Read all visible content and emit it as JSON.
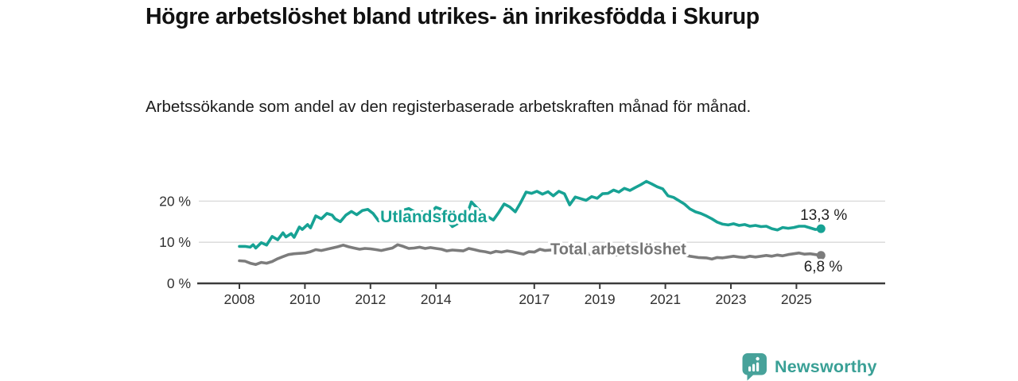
{
  "footer": {
    "brand": "Newsworthy"
  },
  "colors": {
    "accent_teal": "#17a294",
    "line_gray": "#7c7c7c",
    "label_gray": "#757575",
    "axis": "#3b3b3b",
    "gridline": "#d8d8d8",
    "logo_teal": "#47a29a"
  },
  "chart_data": {
    "type": "line",
    "title": "Högre arbetslöshet bland utrikes- än inrikesfödda i Skurup",
    "subtitle": "Arbetssökande som andel av den registerbaserade arbetskraften månad för månad.",
    "xlabel": "",
    "ylabel": "",
    "grid": true,
    "legend": "inline-labels",
    "xlim": [
      2006.8,
      2027.7
    ],
    "ylim": [
      0,
      26
    ],
    "y_unit": "%",
    "x_ticks": [
      {
        "year": 2008,
        "label": "2008"
      },
      {
        "year": 2010,
        "label": "2010"
      },
      {
        "year": 2012,
        "label": "2012"
      },
      {
        "year": 2014,
        "label": "2014"
      },
      {
        "year": 2017,
        "label": "2017"
      },
      {
        "year": 2019,
        "label": "2019"
      },
      {
        "year": 2021,
        "label": "2021"
      },
      {
        "year": 2023,
        "label": "2023"
      },
      {
        "year": 2025,
        "label": "2025"
      }
    ],
    "y_ticks": [
      {
        "value": 0,
        "label": "0 %"
      },
      {
        "value": 10,
        "label": "10 %"
      },
      {
        "value": 20,
        "label": "20 %"
      }
    ],
    "series": [
      {
        "name": "Utlandsfödda",
        "color": "#17a294",
        "label_color": "#17a294",
        "inline_label": {
          "text": "Utlandsfödda",
          "year": 2012.3,
          "pct": 14.9,
          "font_size": 21
        },
        "end_label": {
          "text": "13,3 %",
          "dx": 33,
          "dy": -11
        },
        "end_value": 13.3,
        "points": [
          [
            2008.0,
            9.0
          ],
          [
            2008.17,
            9.0
          ],
          [
            2008.33,
            8.8
          ],
          [
            2008.42,
            9.4
          ],
          [
            2008.5,
            8.6
          ],
          [
            2008.67,
            9.9
          ],
          [
            2008.83,
            9.3
          ],
          [
            2009.0,
            11.4
          ],
          [
            2009.17,
            10.6
          ],
          [
            2009.33,
            12.3
          ],
          [
            2009.42,
            11.3
          ],
          [
            2009.58,
            12.1
          ],
          [
            2009.67,
            11.2
          ],
          [
            2009.83,
            13.7
          ],
          [
            2009.92,
            13.1
          ],
          [
            2010.08,
            14.3
          ],
          [
            2010.17,
            13.5
          ],
          [
            2010.33,
            16.4
          ],
          [
            2010.5,
            15.7
          ],
          [
            2010.67,
            17.0
          ],
          [
            2010.83,
            16.6
          ],
          [
            2010.92,
            15.7
          ],
          [
            2011.08,
            15.0
          ],
          [
            2011.25,
            16.6
          ],
          [
            2011.42,
            17.5
          ],
          [
            2011.58,
            16.7
          ],
          [
            2011.75,
            17.7
          ],
          [
            2011.92,
            18.0
          ],
          [
            2012.08,
            17.0
          ],
          [
            2012.25,
            15.2
          ],
          [
            2012.42,
            15.6
          ],
          [
            2012.5,
            14.8
          ],
          [
            2012.67,
            16.1
          ],
          [
            2012.83,
            17.3
          ],
          [
            2013.0,
            17.8
          ],
          [
            2013.17,
            18.2
          ],
          [
            2013.33,
            17.5
          ],
          [
            2013.42,
            16.9
          ],
          [
            2013.58,
            17.4
          ],
          [
            2013.67,
            16.7
          ],
          [
            2013.83,
            17.2
          ],
          [
            2014.0,
            18.5
          ],
          [
            2014.17,
            18.0
          ],
          [
            2014.33,
            15.5
          ],
          [
            2014.5,
            13.8
          ],
          [
            2014.67,
            14.6
          ],
          [
            2014.83,
            15.5
          ],
          [
            2015.0,
            18.0
          ],
          [
            2015.08,
            19.8
          ],
          [
            2015.25,
            18.4
          ],
          [
            2015.42,
            17.0
          ],
          [
            2015.58,
            16.2
          ],
          [
            2015.75,
            15.4
          ],
          [
            2015.92,
            17.3
          ],
          [
            2016.08,
            19.3
          ],
          [
            2016.25,
            18.6
          ],
          [
            2016.42,
            17.4
          ],
          [
            2016.58,
            19.6
          ],
          [
            2016.75,
            22.2
          ],
          [
            2016.92,
            21.9
          ],
          [
            2017.08,
            22.4
          ],
          [
            2017.25,
            21.7
          ],
          [
            2017.42,
            22.3
          ],
          [
            2017.58,
            21.3
          ],
          [
            2017.75,
            22.4
          ],
          [
            2017.92,
            21.8
          ],
          [
            2018.08,
            19.1
          ],
          [
            2018.25,
            21.0
          ],
          [
            2018.42,
            20.6
          ],
          [
            2018.58,
            20.2
          ],
          [
            2018.75,
            21.1
          ],
          [
            2018.92,
            20.7
          ],
          [
            2019.08,
            21.8
          ],
          [
            2019.25,
            21.9
          ],
          [
            2019.42,
            22.7
          ],
          [
            2019.58,
            22.2
          ],
          [
            2019.75,
            23.1
          ],
          [
            2019.92,
            22.6
          ],
          [
            2020.08,
            23.3
          ],
          [
            2020.25,
            24.0
          ],
          [
            2020.42,
            24.8
          ],
          [
            2020.58,
            24.2
          ],
          [
            2020.75,
            23.5
          ],
          [
            2020.92,
            23.0
          ],
          [
            2021.08,
            21.3
          ],
          [
            2021.25,
            20.9
          ],
          [
            2021.42,
            20.1
          ],
          [
            2021.58,
            19.3
          ],
          [
            2021.75,
            18.1
          ],
          [
            2021.92,
            17.4
          ],
          [
            2022.08,
            17.0
          ],
          [
            2022.25,
            16.4
          ],
          [
            2022.42,
            15.7
          ],
          [
            2022.58,
            14.9
          ],
          [
            2022.75,
            14.4
          ],
          [
            2022.92,
            14.2
          ],
          [
            2023.08,
            14.5
          ],
          [
            2023.25,
            14.1
          ],
          [
            2023.42,
            14.3
          ],
          [
            2023.58,
            13.9
          ],
          [
            2023.75,
            14.1
          ],
          [
            2023.92,
            13.8
          ],
          [
            2024.08,
            13.9
          ],
          [
            2024.25,
            13.3
          ],
          [
            2024.42,
            13.0
          ],
          [
            2024.58,
            13.6
          ],
          [
            2024.75,
            13.4
          ],
          [
            2024.92,
            13.6
          ],
          [
            2025.08,
            13.9
          ],
          [
            2025.25,
            13.9
          ],
          [
            2025.42,
            13.5
          ],
          [
            2025.58,
            13.1
          ],
          [
            2025.75,
            13.3
          ]
        ]
      },
      {
        "name": "Total arbetslöshet",
        "color": "#7c7c7c",
        "label_color": "#757575",
        "inline_label": {
          "text": "Total arbetslöshet",
          "year": 2017.49,
          "pct": 7.05,
          "font_size": 20
        },
        "end_label": {
          "text": "6,8 %",
          "dx": 27,
          "dy": 20
        },
        "end_value": 6.8,
        "points": [
          [
            2008.0,
            5.5
          ],
          [
            2008.17,
            5.4
          ],
          [
            2008.33,
            4.9
          ],
          [
            2008.5,
            4.6
          ],
          [
            2008.67,
            5.1
          ],
          [
            2008.83,
            4.9
          ],
          [
            2009.0,
            5.3
          ],
          [
            2009.17,
            6.0
          ],
          [
            2009.33,
            6.5
          ],
          [
            2009.5,
            7.0
          ],
          [
            2009.67,
            7.2
          ],
          [
            2009.83,
            7.3
          ],
          [
            2010.0,
            7.4
          ],
          [
            2010.17,
            7.7
          ],
          [
            2010.33,
            8.2
          ],
          [
            2010.5,
            8.0
          ],
          [
            2010.67,
            8.3
          ],
          [
            2010.83,
            8.6
          ],
          [
            2011.0,
            8.9
          ],
          [
            2011.17,
            9.3
          ],
          [
            2011.33,
            8.9
          ],
          [
            2011.5,
            8.6
          ],
          [
            2011.67,
            8.3
          ],
          [
            2011.83,
            8.5
          ],
          [
            2012.0,
            8.4
          ],
          [
            2012.17,
            8.2
          ],
          [
            2012.33,
            8.0
          ],
          [
            2012.5,
            8.3
          ],
          [
            2012.67,
            8.6
          ],
          [
            2012.83,
            9.4
          ],
          [
            2013.0,
            9.0
          ],
          [
            2013.17,
            8.5
          ],
          [
            2013.33,
            8.6
          ],
          [
            2013.5,
            8.8
          ],
          [
            2013.67,
            8.5
          ],
          [
            2013.83,
            8.7
          ],
          [
            2014.0,
            8.5
          ],
          [
            2014.17,
            8.3
          ],
          [
            2014.33,
            7.9
          ],
          [
            2014.5,
            8.1
          ],
          [
            2014.67,
            8.0
          ],
          [
            2014.83,
            7.9
          ],
          [
            2015.0,
            8.5
          ],
          [
            2015.17,
            8.2
          ],
          [
            2015.33,
            7.9
          ],
          [
            2015.5,
            7.7
          ],
          [
            2015.67,
            7.4
          ],
          [
            2015.83,
            7.8
          ],
          [
            2016.0,
            7.6
          ],
          [
            2016.17,
            7.9
          ],
          [
            2016.33,
            7.7
          ],
          [
            2016.5,
            7.4
          ],
          [
            2016.67,
            7.1
          ],
          [
            2016.83,
            7.7
          ],
          [
            2017.0,
            7.6
          ],
          [
            2017.17,
            8.3
          ],
          [
            2017.33,
            8.0
          ],
          [
            2017.5,
            8.1
          ],
          [
            2017.75,
            7.8
          ],
          [
            2018.0,
            7.5
          ],
          [
            2018.5,
            7.2
          ],
          [
            2019.0,
            7.0
          ],
          [
            2019.5,
            6.9
          ],
          [
            2020.0,
            7.3
          ],
          [
            2020.5,
            7.8
          ],
          [
            2021.0,
            7.5
          ],
          [
            2021.5,
            7.0
          ],
          [
            2021.75,
            6.6
          ],
          [
            2022.0,
            6.3
          ],
          [
            2022.25,
            6.2
          ],
          [
            2022.42,
            5.9
          ],
          [
            2022.58,
            6.3
          ],
          [
            2022.75,
            6.2
          ],
          [
            2022.92,
            6.4
          ],
          [
            2023.08,
            6.6
          ],
          [
            2023.25,
            6.4
          ],
          [
            2023.42,
            6.3
          ],
          [
            2023.58,
            6.6
          ],
          [
            2023.75,
            6.4
          ],
          [
            2023.92,
            6.6
          ],
          [
            2024.08,
            6.8
          ],
          [
            2024.25,
            6.6
          ],
          [
            2024.42,
            6.9
          ],
          [
            2024.58,
            6.7
          ],
          [
            2024.75,
            7.0
          ],
          [
            2024.92,
            7.2
          ],
          [
            2025.08,
            7.4
          ],
          [
            2025.25,
            7.1
          ],
          [
            2025.42,
            7.2
          ],
          [
            2025.58,
            7.0
          ],
          [
            2025.75,
            6.8
          ]
        ]
      }
    ]
  }
}
